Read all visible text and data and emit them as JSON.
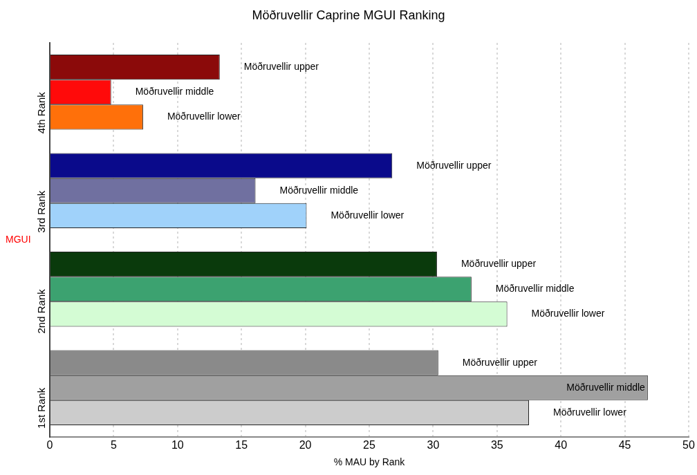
{
  "chart_data": {
    "type": "bar",
    "orientation": "horizontal",
    "title": "Möðruvellir Caprine MGUI Ranking",
    "xlabel": "% MAU by Rank",
    "ylabel": "MGUI",
    "categories": [
      "4th Rank",
      "3rd Rank",
      "2nd Rank",
      "1st Rank"
    ],
    "series": [
      {
        "name": "Möðruvellir upper",
        "colors": [
          "#8b0a0a",
          "#0a0a8b",
          "#0a3a0c",
          "#8a8a8a"
        ],
        "values": [
          13.3,
          26.8,
          30.3,
          30.4
        ]
      },
      {
        "name": "Möðruvellir middle",
        "colors": [
          "#ff0a0a",
          "#7070a0",
          "#3ca270",
          "#a0a0a0"
        ],
        "values": [
          4.8,
          16.1,
          33.0,
          46.8
        ]
      },
      {
        "name": "Möðruvellir lower",
        "colors": [
          "#ff700a",
          "#a0d2fa",
          "#d4fcd4",
          "#cccccc"
        ],
        "values": [
          7.3,
          20.1,
          35.8,
          37.5
        ]
      }
    ],
    "xlim": [
      0,
      50
    ],
    "xticks": [
      0,
      5,
      10,
      15,
      20,
      25,
      30,
      35,
      40,
      45,
      50
    ],
    "grid": "x",
    "legend": false
  }
}
